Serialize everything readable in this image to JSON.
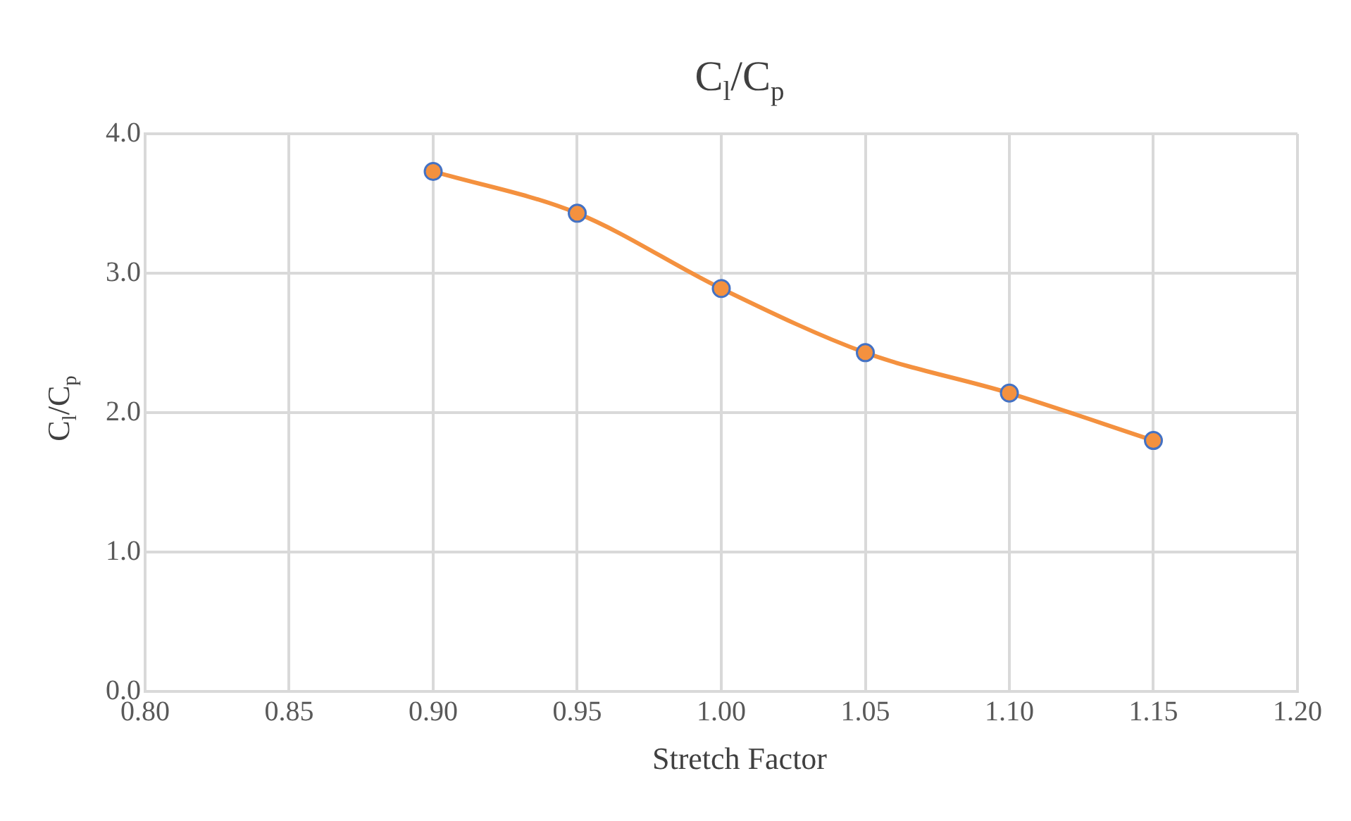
{
  "chart_data": {
    "type": "line",
    "title": "C$_{l}$/C$_{p}$",
    "xlabel": "Stretch Factor",
    "ylabel": "C$_{l}$/C$_{p}$",
    "x": [
      0.9,
      0.95,
      1.0,
      1.05,
      1.1,
      1.15
    ],
    "series": [
      {
        "color": "#f4913f",
        "values": [
          3.73,
          3.43,
          2.89,
          2.43,
          2.14,
          1.8
        ]
      }
    ],
    "xlim": [
      0.8,
      1.2
    ],
    "ylim": [
      0,
      4
    ],
    "xticks": [
      {
        "value": 0.8,
        "label": "0.80"
      },
      {
        "value": 0.85,
        "label": "0.85"
      },
      {
        "value": 0.9,
        "label": "0.90"
      },
      {
        "value": 0.95,
        "label": "0.95"
      },
      {
        "value": 1.0,
        "label": "1.00"
      },
      {
        "value": 1.05,
        "label": "1.05"
      },
      {
        "value": 1.1,
        "label": "1.10"
      },
      {
        "value": 1.15,
        "label": "1.15"
      },
      {
        "value": 1.2,
        "label": "1.20"
      }
    ],
    "yticks": [
      {
        "value": 0,
        "label": "0.0"
      },
      {
        "value": 1,
        "label": "1.0"
      },
      {
        "value": 2,
        "label": "2.0"
      },
      {
        "value": 3,
        "label": "3.0"
      },
      {
        "value": 4,
        "label": "4.0"
      }
    ],
    "grid": true,
    "legend": false,
    "marker": "circle"
  }
}
